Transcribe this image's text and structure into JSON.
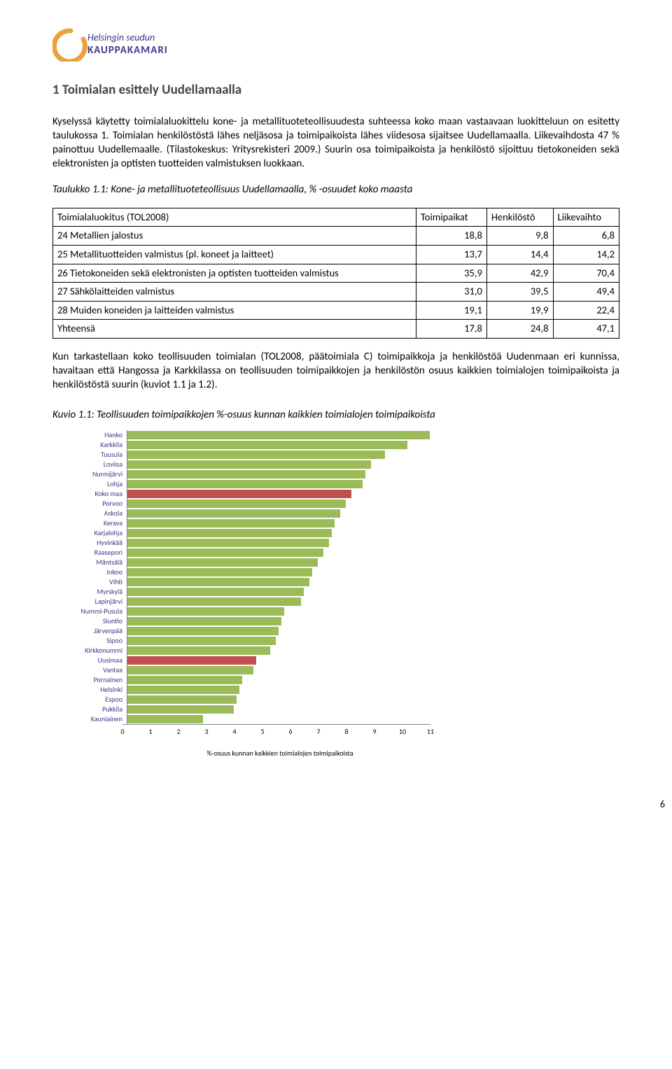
{
  "logo": {
    "line1": "Helsingin seudun",
    "line2": "KAUPPAKAMARI"
  },
  "heading": "1 Toimialan esittely Uudellamaalla",
  "para1": "Kyselyssä käytetty toimialaluokittelu kone- ja metallituoteteollisuudesta suhteessa koko maan vastaavaan luokitteluun on esitetty taulukossa 1. Toimialan henkilöstöstä lähes neljäsosa ja toimipaikoista lähes viidesosa sijaitsee Uudellamaalla. Liikevaihdosta 47 % painottuu Uudellemaalle. (Tilastokeskus: Yritysrekisteri 2009.) Suurin osa toimipaikoista ja henkilöstö sijoittuu tietokoneiden sekä elektronisten ja optisten tuotteiden valmistuksen luokkaan.",
  "tableCaption": "Taulukko 1.1: Kone- ja metallituoteteollisuus Uudellamaalla, % -osuudet koko maasta",
  "table": {
    "headers": [
      "Toimialaluokitus (TOL2008)",
      "Toimipaikat",
      "Henkilöstö",
      "Liikevaihto"
    ],
    "rows": [
      [
        "24 Metallien jalostus",
        "18,8",
        "9,8",
        "6,8"
      ],
      [
        "25 Metallituotteiden valmistus (pl. koneet ja laitteet)",
        "13,7",
        "14,4",
        "14,2"
      ],
      [
        "26 Tietokoneiden sekä elektronisten ja optisten tuotteiden valmistus",
        "35,9",
        "42,9",
        "70,4"
      ],
      [
        "27 Sähkölaitteiden valmistus",
        "31,0",
        "39,5",
        "49,4"
      ],
      [
        "28 Muiden koneiden ja laitteiden valmistus",
        "19,1",
        "19,9",
        "22,4"
      ],
      [
        "Yhteensä",
        "17,8",
        "24,8",
        "47,1"
      ]
    ]
  },
  "para2": "Kun tarkastellaan koko teollisuuden toimialan (TOL2008, päätoimiala C) toimipaikkoja ja henkilöstöä Uudenmaan eri kunnissa, havaitaan että Hangossa ja Karkkilassa on teollisuuden toimipaikkojen ja henkilöstön osuus kaikkien toimialojen toimipaikoista ja henkilöstöstä suurin (kuviot 1.1 ja 1.2).",
  "chart": {
    "caption": "Kuvio 1.1: Teollisuuden toimipaikkojen %-osuus kunnan kaikkien toimialojen toimipaikoista",
    "xmax": 11,
    "xtick_step": 1,
    "xlabel": "%-osuus kunnan kaikkien toimialojen toimipaikoista",
    "default_color": "#9bbb59",
    "highlight_color": "#c0504d",
    "label_color": "#3a3a88",
    "items": [
      {
        "label": "Hanko",
        "value": 10.8
      },
      {
        "label": "Karkkila",
        "value": 10.0
      },
      {
        "label": "Tuusula",
        "value": 9.2
      },
      {
        "label": "Loviisa",
        "value": 8.7
      },
      {
        "label": "Nurmijärvi",
        "value": 8.5
      },
      {
        "label": "Lohja",
        "value": 8.4
      },
      {
        "label": "Koko maa",
        "value": 8.0,
        "highlight": true
      },
      {
        "label": "Porvoo",
        "value": 7.8
      },
      {
        "label": "Askola",
        "value": 7.6
      },
      {
        "label": "Kerava",
        "value": 7.4
      },
      {
        "label": "Karjalohja",
        "value": 7.3
      },
      {
        "label": "Hyvinkää",
        "value": 7.2
      },
      {
        "label": "Raasepori",
        "value": 7.0
      },
      {
        "label": "Mäntsälä",
        "value": 6.8
      },
      {
        "label": "Inkoo",
        "value": 6.6
      },
      {
        "label": "Vihti",
        "value": 6.5
      },
      {
        "label": "Myrskylä",
        "value": 6.3
      },
      {
        "label": "Lapinjärvi",
        "value": 6.2
      },
      {
        "label": "Nummi-Pusula",
        "value": 5.6
      },
      {
        "label": "Siuntio",
        "value": 5.5
      },
      {
        "label": "Järvenpää",
        "value": 5.4
      },
      {
        "label": "Sipoo",
        "value": 5.3
      },
      {
        "label": "Kirkkonummi",
        "value": 5.1
      },
      {
        "label": "Uusimaa",
        "value": 4.6,
        "highlight": true
      },
      {
        "label": "Vantaa",
        "value": 4.5
      },
      {
        "label": "Pornainen",
        "value": 4.1
      },
      {
        "label": "Helsinki",
        "value": 4.0
      },
      {
        "label": "Espoo",
        "value": 3.9
      },
      {
        "label": "Pukkila",
        "value": 3.8
      },
      {
        "label": "Kauniainen",
        "value": 2.7
      }
    ]
  },
  "pageNumber": "6"
}
